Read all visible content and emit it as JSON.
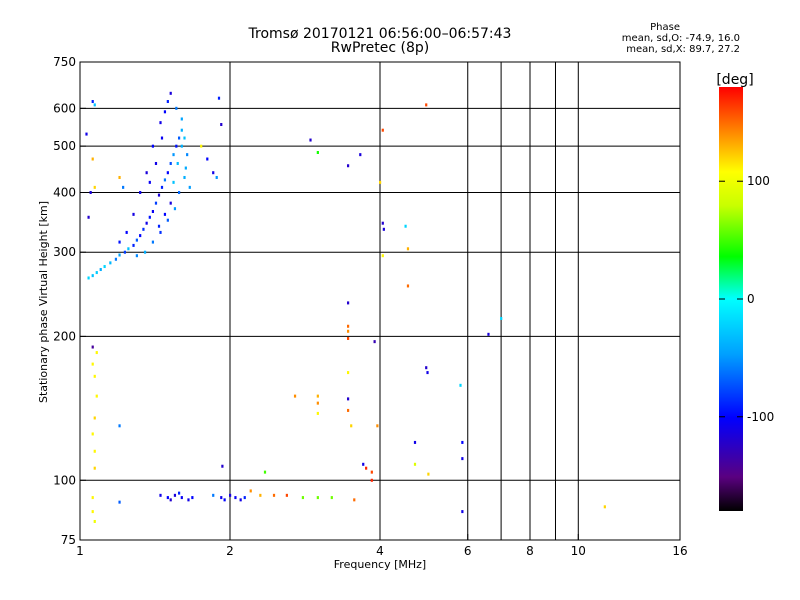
{
  "header": {
    "title_line1": "Tromsø 20170121 06:56:00–06:57:43",
    "title_line2": "RwPretec (8p)"
  },
  "phase_info": {
    "heading": "Phase",
    "line1": "mean, sd,O: -74.9, 16.0",
    "line2": "mean, sd,X: 89.7, 27.2"
  },
  "colorbar": {
    "label": "[deg]",
    "range": [
      -180,
      180
    ],
    "ticks": [
      100,
      0,
      -100
    ],
    "tick_labels": [
      "100",
      "0",
      "-100"
    ]
  },
  "chart_data": {
    "type": "scatter",
    "xlabel": "Frequency [MHz]",
    "ylabel": "Stationary phase Virtual Height [km]",
    "xscale": "log",
    "yscale": "log",
    "xlim": [
      1,
      16
    ],
    "ylim": [
      75,
      750
    ],
    "x_ticks": [
      1,
      2,
      4,
      6,
      8,
      10,
      16
    ],
    "x_tick_labels": [
      "1",
      "2",
      "4",
      "6",
      "8",
      "10",
      "16"
    ],
    "y_ticks": [
      75,
      100,
      200,
      300,
      400,
      500,
      600,
      750
    ],
    "y_tick_labels": [
      "75",
      "100",
      "200",
      "300",
      "400",
      "500",
      "600",
      "750"
    ],
    "grid_x": [
      2,
      4,
      6,
      8,
      10
    ],
    "grid_y": [
      100,
      200,
      300,
      400,
      500,
      600
    ],
    "minor_x": [
      7,
      9
    ],
    "points": [
      {
        "x": 1.04,
        "y": 265,
        "p": -20
      },
      {
        "x": 1.06,
        "y": 268,
        "p": -30
      },
      {
        "x": 1.08,
        "y": 272,
        "p": -25
      },
      {
        "x": 1.1,
        "y": 276,
        "p": -40
      },
      {
        "x": 1.12,
        "y": 280,
        "p": -20
      },
      {
        "x": 1.15,
        "y": 285,
        "p": -35
      },
      {
        "x": 1.18,
        "y": 290,
        "p": -60
      },
      {
        "x": 1.2,
        "y": 296,
        "p": -45
      },
      {
        "x": 1.23,
        "y": 300,
        "p": -80
      },
      {
        "x": 1.25,
        "y": 305,
        "p": -30
      },
      {
        "x": 1.28,
        "y": 310,
        "p": -90
      },
      {
        "x": 1.3,
        "y": 318,
        "p": -70
      },
      {
        "x": 1.32,
        "y": 325,
        "p": -100
      },
      {
        "x": 1.34,
        "y": 335,
        "p": -85
      },
      {
        "x": 1.36,
        "y": 345,
        "p": -110
      },
      {
        "x": 1.38,
        "y": 355,
        "p": -95
      },
      {
        "x": 1.4,
        "y": 365,
        "p": -105
      },
      {
        "x": 1.42,
        "y": 380,
        "p": -80
      },
      {
        "x": 1.44,
        "y": 395,
        "p": -115
      },
      {
        "x": 1.46,
        "y": 410,
        "p": -90
      },
      {
        "x": 1.48,
        "y": 425,
        "p": -60
      },
      {
        "x": 1.5,
        "y": 440,
        "p": -100
      },
      {
        "x": 1.52,
        "y": 460,
        "p": -75
      },
      {
        "x": 1.54,
        "y": 480,
        "p": -50
      },
      {
        "x": 1.56,
        "y": 500,
        "p": -95
      },
      {
        "x": 1.58,
        "y": 520,
        "p": -70
      },
      {
        "x": 1.6,
        "y": 540,
        "p": -40
      },
      {
        "x": 1.45,
        "y": 560,
        "p": -110
      },
      {
        "x": 1.48,
        "y": 590,
        "p": -100
      },
      {
        "x": 1.5,
        "y": 620,
        "p": -90
      },
      {
        "x": 1.52,
        "y": 645,
        "p": -115
      },
      {
        "x": 1.56,
        "y": 600,
        "p": -60
      },
      {
        "x": 1.6,
        "y": 570,
        "p": -45
      },
      {
        "x": 1.62,
        "y": 520,
        "p": -30
      },
      {
        "x": 1.64,
        "y": 480,
        "p": -55
      },
      {
        "x": 1.62,
        "y": 430,
        "p": -40
      },
      {
        "x": 1.58,
        "y": 400,
        "p": -65
      },
      {
        "x": 1.55,
        "y": 370,
        "p": -50
      },
      {
        "x": 1.5,
        "y": 350,
        "p": -70
      },
      {
        "x": 1.45,
        "y": 330,
        "p": -85
      },
      {
        "x": 1.4,
        "y": 315,
        "p": -60
      },
      {
        "x": 1.35,
        "y": 300,
        "p": -40
      },
      {
        "x": 1.3,
        "y": 295,
        "p": -55
      },
      {
        "x": 1.38,
        "y": 420,
        "p": -105
      },
      {
        "x": 1.42,
        "y": 460,
        "p": -110
      },
      {
        "x": 1.46,
        "y": 520,
        "p": -105
      },
      {
        "x": 1.4,
        "y": 500,
        "p": -100
      },
      {
        "x": 1.36,
        "y": 440,
        "p": -115
      },
      {
        "x": 1.32,
        "y": 400,
        "p": -108
      },
      {
        "x": 1.28,
        "y": 360,
        "p": -112
      },
      {
        "x": 1.24,
        "y": 330,
        "p": -100
      },
      {
        "x": 1.2,
        "y": 315,
        "p": -95
      },
      {
        "x": 1.54,
        "y": 420,
        "p": -30
      },
      {
        "x": 1.57,
        "y": 460,
        "p": -35
      },
      {
        "x": 1.6,
        "y": 500,
        "p": -38
      },
      {
        "x": 1.63,
        "y": 450,
        "p": -42
      },
      {
        "x": 1.66,
        "y": 410,
        "p": -48
      },
      {
        "x": 1.52,
        "y": 380,
        "p": -115
      },
      {
        "x": 1.48,
        "y": 360,
        "p": -100
      },
      {
        "x": 1.44,
        "y": 340,
        "p": -90
      },
      {
        "x": 1.06,
        "y": 620,
        "p": -90
      },
      {
        "x": 1.07,
        "y": 610,
        "p": -30
      },
      {
        "x": 1.03,
        "y": 530,
        "p": -110
      },
      {
        "x": 1.06,
        "y": 470,
        "p": 130
      },
      {
        "x": 1.05,
        "y": 400,
        "p": -115
      },
      {
        "x": 1.04,
        "y": 355,
        "p": -120
      },
      {
        "x": 1.07,
        "y": 410,
        "p": 120
      },
      {
        "x": 1.2,
        "y": 430,
        "p": 130
      },
      {
        "x": 1.22,
        "y": 410,
        "p": -60
      },
      {
        "x": 1.75,
        "y": 500,
        "p": 110
      },
      {
        "x": 1.85,
        "y": 440,
        "p": -110
      },
      {
        "x": 1.88,
        "y": 430,
        "p": -50
      },
      {
        "x": 1.92,
        "y": 555,
        "p": -120
      },
      {
        "x": 1.9,
        "y": 630,
        "p": -90
      },
      {
        "x": 1.8,
        "y": 470,
        "p": -100
      },
      {
        "x": 2.9,
        "y": 515,
        "p": -120
      },
      {
        "x": 3.0,
        "y": 485,
        "p": 40
      },
      {
        "x": 3.45,
        "y": 455,
        "p": -120
      },
      {
        "x": 3.65,
        "y": 480,
        "p": -115
      },
      {
        "x": 4.05,
        "y": 540,
        "p": 160
      },
      {
        "x": 4.0,
        "y": 420,
        "p": 120
      },
      {
        "x": 4.05,
        "y": 345,
        "p": -120
      },
      {
        "x": 4.07,
        "y": 335,
        "p": -115
      },
      {
        "x": 4.05,
        "y": 295,
        "p": 110
      },
      {
        "x": 4.5,
        "y": 340,
        "p": -20
      },
      {
        "x": 4.55,
        "y": 305,
        "p": 130
      },
      {
        "x": 4.55,
        "y": 255,
        "p": 150
      },
      {
        "x": 4.95,
        "y": 610,
        "p": 160
      },
      {
        "x": 3.45,
        "y": 235,
        "p": -120
      },
      {
        "x": 3.45,
        "y": 210,
        "p": 150
      },
      {
        "x": 3.45,
        "y": 205,
        "p": 140
      },
      {
        "x": 3.45,
        "y": 198,
        "p": 160
      },
      {
        "x": 3.9,
        "y": 195,
        "p": -130
      },
      {
        "x": 4.95,
        "y": 172,
        "p": -120
      },
      {
        "x": 4.98,
        "y": 168,
        "p": -110
      },
      {
        "x": 5.8,
        "y": 158,
        "p": -20
      },
      {
        "x": 6.6,
        "y": 202,
        "p": -115
      },
      {
        "x": 7.0,
        "y": 218,
        "p": -20
      },
      {
        "x": 3.45,
        "y": 168,
        "p": 110
      },
      {
        "x": 3.45,
        "y": 148,
        "p": -120
      },
      {
        "x": 3.45,
        "y": 140,
        "p": 150
      },
      {
        "x": 3.5,
        "y": 130,
        "p": 120
      },
      {
        "x": 2.7,
        "y": 150,
        "p": 140
      },
      {
        "x": 3.0,
        "y": 150,
        "p": 130
      },
      {
        "x": 3.0,
        "y": 145,
        "p": 140
      },
      {
        "x": 3.0,
        "y": 138,
        "p": 110
      },
      {
        "x": 3.7,
        "y": 108,
        "p": -110
      },
      {
        "x": 3.75,
        "y": 106,
        "p": 170
      },
      {
        "x": 3.85,
        "y": 104,
        "p": 160
      },
      {
        "x": 3.85,
        "y": 100,
        "p": 170
      },
      {
        "x": 3.95,
        "y": 130,
        "p": 140
      },
      {
        "x": 4.7,
        "y": 120,
        "p": -110
      },
      {
        "x": 4.7,
        "y": 108,
        "p": 90
      },
      {
        "x": 5.0,
        "y": 103,
        "p": 120
      },
      {
        "x": 5.85,
        "y": 120,
        "p": -100
      },
      {
        "x": 5.85,
        "y": 111,
        "p": -110
      },
      {
        "x": 5.85,
        "y": 86,
        "p": -110
      },
      {
        "x": 1.06,
        "y": 190,
        "p": -140
      },
      {
        "x": 1.08,
        "y": 185,
        "p": 110
      },
      {
        "x": 1.06,
        "y": 175,
        "p": 110
      },
      {
        "x": 1.07,
        "y": 165,
        "p": 110
      },
      {
        "x": 1.08,
        "y": 150,
        "p": 110
      },
      {
        "x": 1.07,
        "y": 135,
        "p": 120
      },
      {
        "x": 1.06,
        "y": 125,
        "p": 110
      },
      {
        "x": 1.07,
        "y": 115,
        "p": 110
      },
      {
        "x": 1.07,
        "y": 106,
        "p": 120
      },
      {
        "x": 1.2,
        "y": 130,
        "p": -60
      },
      {
        "x": 1.93,
        "y": 107,
        "p": -120
      },
      {
        "x": 2.35,
        "y": 104,
        "p": 50
      },
      {
        "x": 1.06,
        "y": 92,
        "p": 110
      },
      {
        "x": 1.06,
        "y": 86,
        "p": 110
      },
      {
        "x": 1.07,
        "y": 82,
        "p": 100
      },
      {
        "x": 1.2,
        "y": 90,
        "p": -70
      },
      {
        "x": 1.45,
        "y": 93,
        "p": -110
      },
      {
        "x": 1.5,
        "y": 92,
        "p": -100
      },
      {
        "x": 1.55,
        "y": 93,
        "p": -115
      },
      {
        "x": 1.6,
        "y": 92,
        "p": -105
      },
      {
        "x": 1.65,
        "y": 91,
        "p": -110
      },
      {
        "x": 1.68,
        "y": 92,
        "p": -100
      },
      {
        "x": 1.52,
        "y": 91,
        "p": -120
      },
      {
        "x": 1.58,
        "y": 94,
        "p": -90
      },
      {
        "x": 1.85,
        "y": 93,
        "p": -60
      },
      {
        "x": 1.92,
        "y": 92,
        "p": -110
      },
      {
        "x": 1.95,
        "y": 91,
        "p": -100
      },
      {
        "x": 2.0,
        "y": 93,
        "p": -115
      },
      {
        "x": 2.05,
        "y": 92,
        "p": -105
      },
      {
        "x": 2.1,
        "y": 91,
        "p": -110
      },
      {
        "x": 2.14,
        "y": 92,
        "p": -90
      },
      {
        "x": 2.2,
        "y": 95,
        "p": 140
      },
      {
        "x": 2.3,
        "y": 93,
        "p": 130
      },
      {
        "x": 2.45,
        "y": 93,
        "p": 150
      },
      {
        "x": 2.6,
        "y": 93,
        "p": 160
      },
      {
        "x": 2.8,
        "y": 92,
        "p": 60
      },
      {
        "x": 3.0,
        "y": 92,
        "p": 60
      },
      {
        "x": 3.2,
        "y": 92,
        "p": 60
      },
      {
        "x": 3.55,
        "y": 91,
        "p": 150
      },
      {
        "x": 11.3,
        "y": 88,
        "p": 120
      }
    ]
  }
}
